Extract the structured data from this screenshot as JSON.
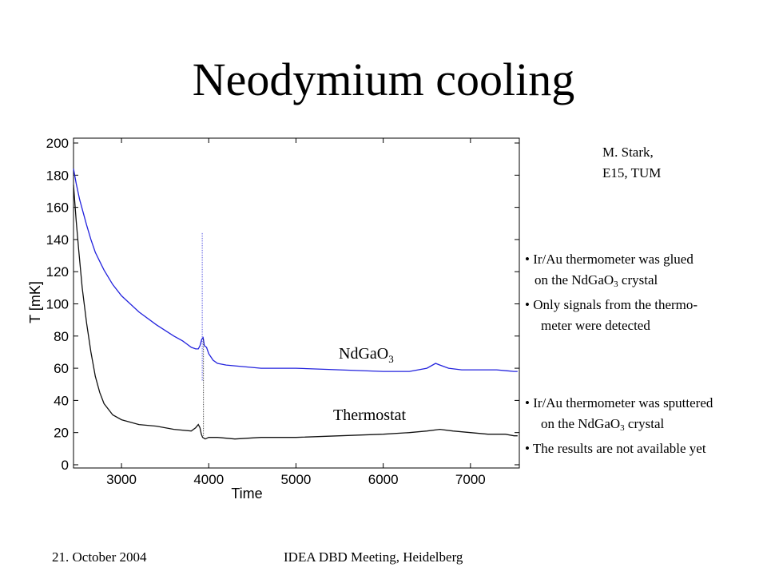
{
  "slide": {
    "title": "Neodymium cooling",
    "credit_line1": "M. Stark,",
    "credit_line2": "E15, TUM",
    "notes_group1": [
      {
        "pre": "• Ir/Au thermometer was glued",
        "sub": "",
        "post": ""
      },
      {
        "pre": "on the NdGaO",
        "sub": "3",
        "post": " crystal"
      },
      {
        "pre": "• Only signals from the thermo-",
        "sub": "",
        "post": ""
      },
      {
        "pre": "meter were detected",
        "sub": "",
        "post": ""
      }
    ],
    "notes_group2": [
      {
        "pre": "• Ir/Au thermometer was sputtered",
        "sub": "",
        "post": ""
      },
      {
        "pre": "on the NdGaO",
        "sub": "3",
        "post": " crystal"
      },
      {
        "pre": "• The results are not available yet",
        "sub": "",
        "post": ""
      }
    ],
    "footer_left": "21. October 2004",
    "footer_center": "IDEA DBD Meeting, Heidelberg"
  },
  "chart_data": {
    "type": "line",
    "xlabel": "Time",
    "ylabel": "T [mK]",
    "xlim": [
      2450,
      7560
    ],
    "ylim": [
      -2,
      203
    ],
    "x_ticks": [
      3000,
      4000,
      5000,
      6000,
      7000
    ],
    "y_ticks": [
      0,
      20,
      40,
      60,
      80,
      100,
      120,
      140,
      160,
      180,
      200
    ],
    "grid": false,
    "series_label_1": {
      "text": "NdGaO",
      "sub": "3"
    },
    "series_label_2": {
      "text": "Thermostat"
    },
    "series": [
      {
        "color": "#2222dd",
        "x": [
          2450,
          2480,
          2520,
          2560,
          2600,
          2650,
          2700,
          2800,
          2900,
          3000,
          3200,
          3400,
          3600,
          3700,
          3750,
          3800,
          3850,
          3880,
          3900,
          3910,
          3920,
          3935,
          3950,
          3975,
          4000,
          4050,
          4100,
          4200,
          4400,
          4600,
          5000,
          5500,
          6000,
          6300,
          6500,
          6600,
          6650,
          6750,
          6900,
          7100,
          7300,
          7500,
          7540
        ],
        "y": [
          184,
          175,
          165,
          157,
          149,
          140,
          132,
          121,
          112,
          105,
          95,
          87,
          80,
          77,
          75,
          73,
          72,
          72,
          74,
          76,
          78,
          79,
          74,
          73,
          69,
          65,
          63,
          62,
          61,
          60,
          60,
          59,
          58,
          58,
          60,
          63,
          62,
          60,
          59,
          59,
          59,
          58,
          58
        ]
      },
      {
        "color": "#111111",
        "x": [
          2450,
          2480,
          2510,
          2550,
          2600,
          2650,
          2700,
          2750,
          2800,
          2900,
          3000,
          3200,
          3400,
          3600,
          3800,
          3850,
          3880,
          3900,
          3915,
          3930,
          3960,
          4000,
          4100,
          4300,
          4600,
          5000,
          5500,
          6000,
          6300,
          6500,
          6650,
          6800,
          7000,
          7200,
          7400,
          7500,
          7540
        ],
        "y": [
          174,
          152,
          133,
          110,
          88,
          70,
          55,
          45,
          38,
          31,
          28,
          25,
          24,
          22,
          21,
          23,
          25,
          23,
          19,
          17,
          16,
          17,
          17,
          16,
          17,
          17,
          18,
          19,
          20,
          21,
          22,
          21,
          20,
          19,
          19,
          18,
          18
        ]
      },
      {
        "color": "#3333dd",
        "x": [
          3925,
          3925
        ],
        "y": [
          144,
          52
        ]
      },
      {
        "color": "#222222",
        "x": [
          3940,
          3940
        ],
        "y": [
          78,
          18
        ]
      }
    ]
  }
}
